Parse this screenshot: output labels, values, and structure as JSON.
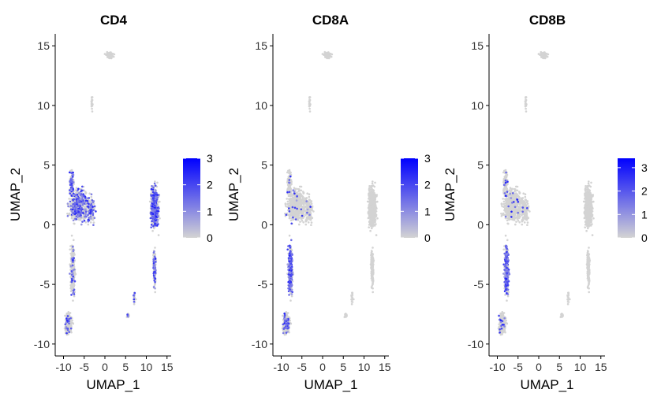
{
  "chart_data": [
    {
      "type": "scatter",
      "title": "CD4",
      "xlabel": "UMAP_1",
      "ylabel": "UMAP_2",
      "xlim": [
        -12,
        16
      ],
      "ylim": [
        -11,
        16
      ],
      "xticks": [
        "-10",
        "-5",
        "0",
        "5",
        "10",
        "15"
      ],
      "yticks": [
        "-10",
        "-5",
        "0",
        "5",
        "10",
        "15"
      ],
      "colorbar": {
        "ticks": [
          "3",
          "2",
          "1",
          "0"
        ],
        "max": 3,
        "low_color": "#d3d3d3",
        "high_color": "#0000ff"
      },
      "expression_regions": [
        "upper-left cluster (x -10 to -3, y 0 to 4)",
        "right cluster (x 10 to 14, y -6 to 4)",
        "lower-left strand (x -9 to -7, y -9 to -2)"
      ]
    },
    {
      "type": "scatter",
      "title": "CD8A",
      "xlabel": "UMAP_1",
      "ylabel": "UMAP_2",
      "xlim": [
        -12,
        16
      ],
      "ylim": [
        -11,
        16
      ],
      "xticks": [
        "-10",
        "-5",
        "0",
        "5",
        "10",
        "15"
      ],
      "yticks": [
        "-10",
        "-5",
        "0",
        "5",
        "10",
        "15"
      ],
      "colorbar": {
        "ticks": [
          "3",
          "2",
          "1",
          "0"
        ],
        "max": 3,
        "low_color": "#d3d3d3",
        "high_color": "#0000ff"
      },
      "expression_regions": [
        "left strand (x -8 to -6, y -6 to 0)",
        "lower-left cluster (x -10 to -7, y -9 to -8)"
      ]
    },
    {
      "type": "scatter",
      "title": "CD8B",
      "xlabel": "UMAP_1",
      "ylabel": "UMAP_2",
      "xlim": [
        -12,
        16
      ],
      "ylim": [
        -11,
        16
      ],
      "xticks": [
        "-10",
        "-5",
        "0",
        "5",
        "10",
        "15"
      ],
      "yticks": [
        "-10",
        "-5",
        "0",
        "5",
        "10",
        "15"
      ],
      "colorbar": {
        "ticks": [
          "3",
          "2",
          "1"
        ],
        "zero_tick": "0",
        "max": 3.4,
        "low_color": "#d3d3d3",
        "high_color": "#0000ff"
      },
      "expression_regions": [
        "left strand (x -8 to -6, y -6 to 0)",
        "lower-left cluster (x -10 to -7, y -9 to -8)"
      ]
    }
  ]
}
